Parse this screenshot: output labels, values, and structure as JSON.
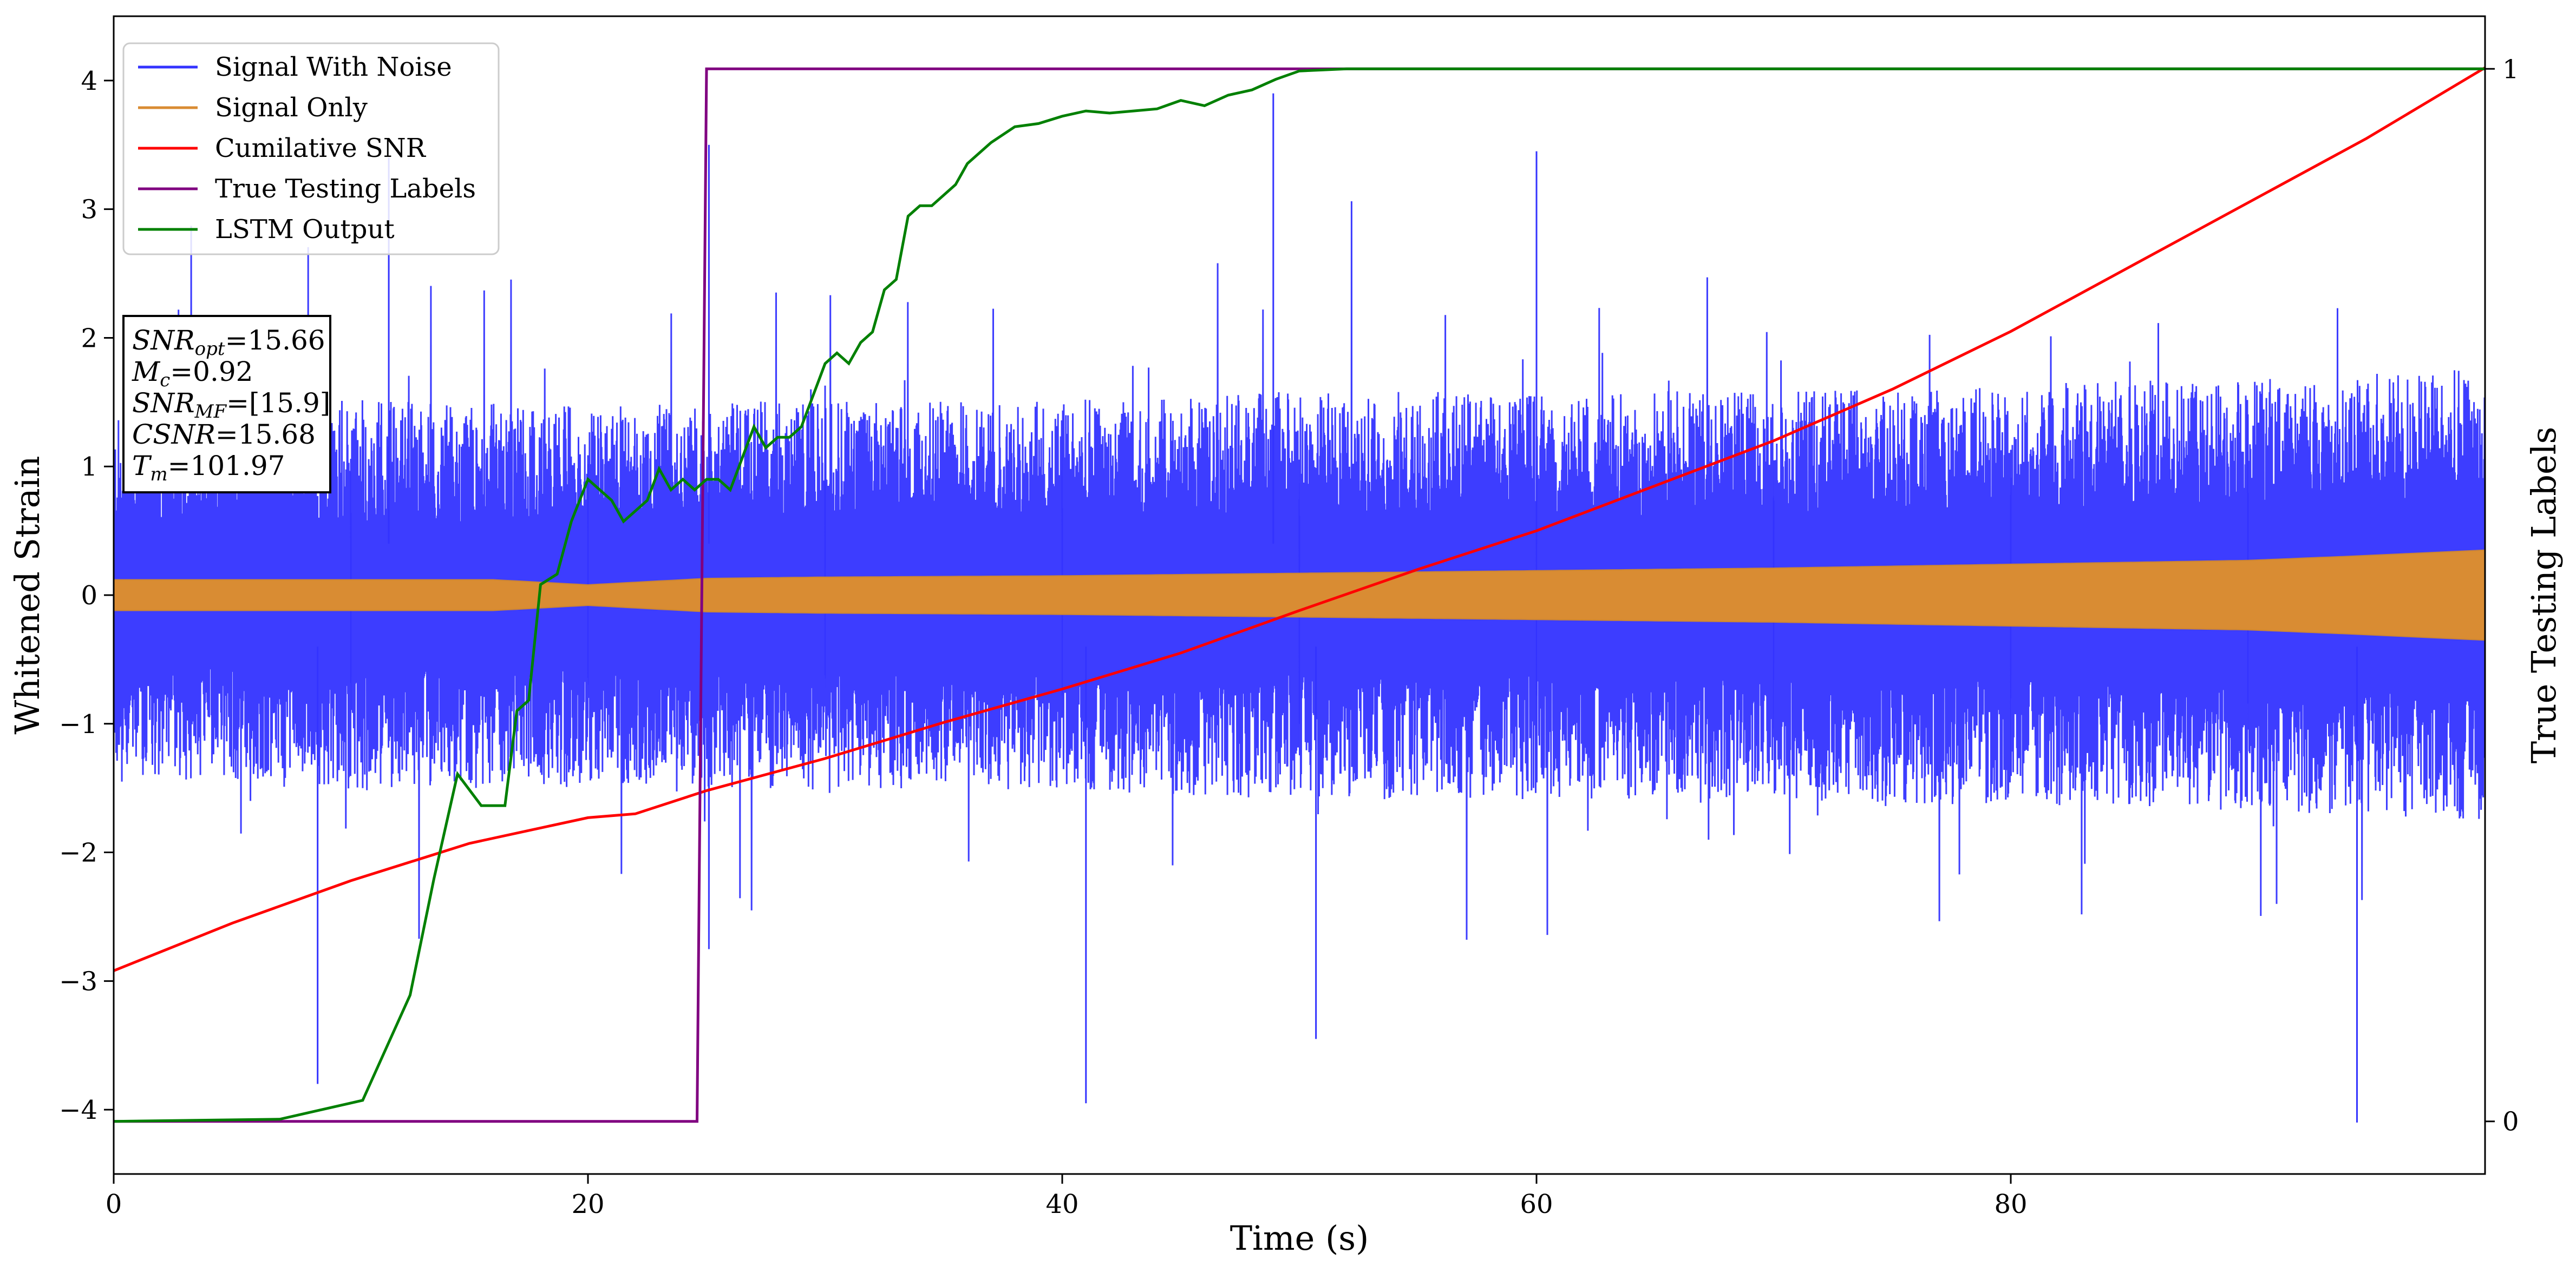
{
  "chart_data": {
    "type": "line",
    "xlabel": "Time (s)",
    "ylabel": "Whitened Strain",
    "y2label": "True Testing Labels",
    "xlim": [
      0,
      100
    ],
    "ylim": [
      -4.5,
      4.5
    ],
    "y2lim": [
      -0.05,
      1.05
    ],
    "xticks": [
      0,
      20,
      40,
      60,
      80
    ],
    "yticks": [
      -4,
      -3,
      -2,
      -1,
      0,
      1,
      2,
      3,
      4
    ],
    "y2ticks": [
      0,
      1
    ],
    "grid": false,
    "legend_position": "top-left",
    "colors": {
      "signal_with_noise": "#3333ff",
      "signal_only": "#d98c33",
      "cumulative_snr": "#ff0000",
      "true_labels": "#800080",
      "lstm_output": "#008000"
    },
    "series": [
      {
        "name": "Signal With Noise",
        "axis": "left",
        "envelope": {
          "x": [
            0,
            10,
            20,
            30,
            40,
            50,
            60,
            70,
            80,
            90,
            100
          ],
          "typical_upper": [
            1.1,
            1.2,
            1.15,
            1.2,
            1.2,
            1.25,
            1.25,
            1.25,
            1.3,
            1.35,
            1.4
          ],
          "typical_lower": [
            -1.1,
            -1.2,
            -1.15,
            -1.2,
            -1.2,
            -1.25,
            -1.25,
            -1.25,
            -1.3,
            -1.35,
            -1.4
          ],
          "band_upper": [
            0.45,
            0.45,
            0.45,
            0.5,
            0.5,
            0.5,
            0.5,
            0.5,
            0.55,
            0.6,
            0.6
          ],
          "band_lower": [
            -0.45,
            -0.45,
            -0.45,
            -0.5,
            -0.5,
            -0.5,
            -0.5,
            -0.5,
            -0.55,
            -0.6,
            -0.6
          ]
        },
        "notable_extremes": [
          {
            "x": 11.6,
            "y": 3.4
          },
          {
            "x": 25.1,
            "y": 3.5
          },
          {
            "x": 48.9,
            "y": 3.9
          },
          {
            "x": 60.0,
            "y": 3.45
          },
          {
            "x": 8.6,
            "y": -3.8
          },
          {
            "x": 41.0,
            "y": -3.95
          },
          {
            "x": 94.6,
            "y": -4.1
          },
          {
            "x": 50.7,
            "y": -3.45
          }
        ]
      },
      {
        "name": "Signal Only",
        "axis": "left",
        "x": [
          0,
          10,
          16,
          20,
          25,
          30,
          40,
          50,
          60,
          70,
          80,
          90,
          94,
          100
        ],
        "upper": [
          0.12,
          0.12,
          0.12,
          0.08,
          0.13,
          0.14,
          0.15,
          0.17,
          0.19,
          0.21,
          0.24,
          0.27,
          0.3,
          0.35
        ],
        "lower": [
          -0.12,
          -0.12,
          -0.12,
          -0.08,
          -0.13,
          -0.14,
          -0.15,
          -0.17,
          -0.19,
          -0.21,
          -0.24,
          -0.27,
          -0.3,
          -0.35
        ]
      },
      {
        "name": "Cumilative SNR",
        "axis": "left",
        "x": [
          0,
          5,
          10,
          15,
          20,
          22,
          25,
          30,
          35,
          40,
          45,
          50,
          55,
          60,
          65,
          70,
          75,
          80,
          85,
          90,
          95,
          100
        ],
        "values": [
          -2.92,
          -2.55,
          -2.22,
          -1.93,
          -1.73,
          -1.7,
          -1.52,
          -1.27,
          -0.99,
          -0.73,
          -0.45,
          -0.12,
          0.2,
          0.5,
          0.85,
          1.2,
          1.6,
          2.05,
          2.55,
          3.05,
          3.55,
          4.1
        ]
      },
      {
        "name": "True Testing Labels",
        "axis": "right",
        "x": [
          0,
          24.6,
          25.0,
          100
        ],
        "values": [
          0,
          0,
          1,
          1
        ]
      },
      {
        "name": "LSTM Output",
        "axis": "right",
        "x": [
          0,
          7,
          10.5,
          11.5,
          12.5,
          13.5,
          14.5,
          15.5,
          16.5,
          17.0,
          17.5,
          18.0,
          18.7,
          19.3,
          20.0,
          20.5,
          21.0,
          21.5,
          22.0,
          22.5,
          23.0,
          23.5,
          24.0,
          24.5,
          25.0,
          25.5,
          26.0,
          26.5,
          27.0,
          27.5,
          28.0,
          28.5,
          29.0,
          29.5,
          30.0,
          30.5,
          31.0,
          31.5,
          32.0,
          32.5,
          33.0,
          33.5,
          34.0,
          34.5,
          35.0,
          35.5,
          36.0,
          37.0,
          38.0,
          39.0,
          40.0,
          41.0,
          42.0,
          43.0,
          44.0,
          45.0,
          46.0,
          47.0,
          48.0,
          49.0,
          50.0,
          52.0,
          60.0,
          100.0
        ],
        "values": [
          0,
          0.002,
          0.02,
          0.07,
          0.12,
          0.23,
          0.33,
          0.3,
          0.3,
          0.39,
          0.4,
          0.51,
          0.52,
          0.57,
          0.61,
          0.6,
          0.59,
          0.57,
          0.58,
          0.59,
          0.62,
          0.6,
          0.61,
          0.6,
          0.61,
          0.61,
          0.6,
          0.63,
          0.66,
          0.64,
          0.65,
          0.65,
          0.66,
          0.69,
          0.72,
          0.73,
          0.72,
          0.74,
          0.75,
          0.79,
          0.8,
          0.86,
          0.87,
          0.87,
          0.88,
          0.89,
          0.91,
          0.93,
          0.945,
          0.948,
          0.955,
          0.96,
          0.958,
          0.96,
          0.962,
          0.97,
          0.965,
          0.975,
          0.98,
          0.99,
          0.998,
          1.0,
          1.0,
          1.0
        ]
      }
    ],
    "annotation": {
      "lines": [
        {
          "main": "SNR",
          "sub": "opt",
          "rest": "=15.66"
        },
        {
          "main": "M",
          "sub": "c",
          "rest": "=0.92"
        },
        {
          "main": "SNR",
          "sub": "MF",
          "rest": "=[15.9]"
        },
        {
          "main": "CSNR",
          "sub": "",
          "rest": "=15.68"
        },
        {
          "main": "T",
          "sub": "m",
          "rest": "=101.97"
        }
      ]
    }
  }
}
